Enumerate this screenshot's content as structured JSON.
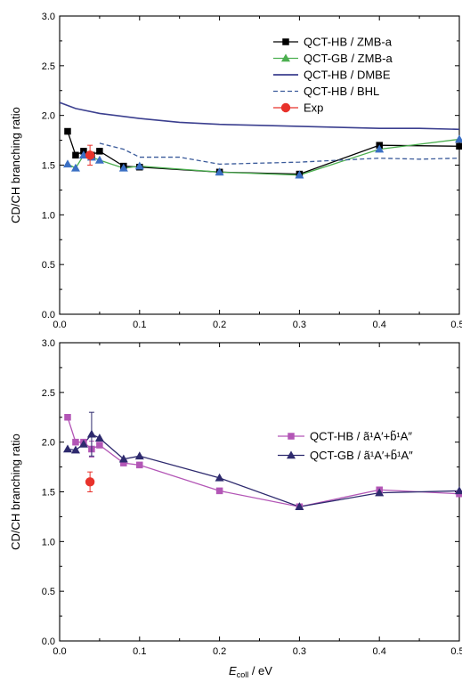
{
  "colors": {
    "hb_zmb": "#000000",
    "gb_zmb": "#4caf50",
    "hb_zmb_marker": "#3a6fc4",
    "dmbe": "#3b3f8f",
    "bhl": "#3a5a9a",
    "exp": "#e8322b",
    "hb_states": "#b356b6",
    "gb_states": "#2e2a6e"
  },
  "chart_data": [
    {
      "type": "line",
      "xlabel": "",
      "ylabel": "CD/CH branching ratio",
      "xlim": [
        0,
        0.5
      ],
      "ylim": [
        0,
        3.0
      ],
      "xticks": [
        "0.0",
        "0.1",
        "0.2",
        "0.3",
        "0.4",
        "0.5"
      ],
      "yticks": [
        "0.0",
        "0.5",
        "1.0",
        "1.5",
        "2.0",
        "2.5",
        "3.0"
      ],
      "legend_position": "top-right",
      "series": [
        {
          "name": "QCT-HB / ZMB-a",
          "style": "line-square",
          "color_key": "hb_zmb",
          "x": [
            0.01,
            0.02,
            0.03,
            0.04,
            0.05,
            0.08,
            0.1,
            0.2,
            0.3,
            0.4,
            0.5
          ],
          "y": [
            1.84,
            1.6,
            1.64,
            1.6,
            1.64,
            1.49,
            1.48,
            1.43,
            1.41,
            1.7,
            1.69
          ]
        },
        {
          "name": "QCT-GB / ZMB-a",
          "style": "line-triangle",
          "color_key": "gb_zmb",
          "x": [
            0.01,
            0.02,
            0.03,
            0.04,
            0.05,
            0.08,
            0.1,
            0.2,
            0.3,
            0.4,
            0.5
          ],
          "y": [
            1.51,
            1.47,
            1.6,
            1.58,
            1.55,
            1.47,
            1.49,
            1.43,
            1.4,
            1.66,
            1.76
          ]
        },
        {
          "name": "QCT-HB / DMBE",
          "style": "line",
          "color_key": "dmbe",
          "x": [
            0.0,
            0.02,
            0.05,
            0.1,
            0.15,
            0.2,
            0.25,
            0.3,
            0.35,
            0.4,
            0.45,
            0.5
          ],
          "y": [
            2.13,
            2.07,
            2.02,
            1.97,
            1.93,
            1.91,
            1.9,
            1.89,
            1.88,
            1.87,
            1.87,
            1.86
          ]
        },
        {
          "name": "QCT-HB / BHL",
          "style": "dashed",
          "color_key": "bhl",
          "x": [
            0.05,
            0.08,
            0.1,
            0.15,
            0.2,
            0.3,
            0.4,
            0.45,
            0.5
          ],
          "y": [
            1.72,
            1.66,
            1.58,
            1.58,
            1.51,
            1.53,
            1.57,
            1.56,
            1.57
          ]
        },
        {
          "name": "Exp",
          "style": "point-circle",
          "color_key": "exp",
          "x": [
            0.038
          ],
          "y": [
            1.6
          ],
          "yerr": [
            0.1
          ]
        }
      ]
    },
    {
      "type": "line",
      "xlabel": "E_coll / eV",
      "xlabel_main": "E",
      "xlabel_sub": "coll",
      "xlabel_unit": " / eV",
      "ylabel": "CD/CH branching ratio",
      "xlim": [
        0,
        0.5
      ],
      "ylim": [
        0,
        3.0
      ],
      "xticks": [
        "0.0",
        "0.1",
        "0.2",
        "0.3",
        "0.4",
        "0.5"
      ],
      "yticks": [
        "0.0",
        "0.5",
        "1.0",
        "1.5",
        "2.0",
        "2.5",
        "3.0"
      ],
      "legend_position": "top-right",
      "series": [
        {
          "name": "QCT-HB / ã¹A′+b̃¹A″",
          "style": "line-square",
          "color_key": "hb_states",
          "x": [
            0.01,
            0.02,
            0.03,
            0.04,
            0.05,
            0.08,
            0.1,
            0.2,
            0.3,
            0.4,
            0.5
          ],
          "y": [
            2.25,
            2.0,
            2.0,
            1.93,
            1.97,
            1.79,
            1.77,
            1.51,
            1.35,
            1.52,
            1.48
          ],
          "yerr_index": 3,
          "yerr_value": 0.08
        },
        {
          "name": "QCT-GB / ã¹A′+b̃¹A″",
          "style": "line-triangle",
          "color_key": "gb_states",
          "x": [
            0.01,
            0.02,
            0.03,
            0.04,
            0.05,
            0.08,
            0.1,
            0.2,
            0.3,
            0.4,
            0.5
          ],
          "y": [
            1.93,
            1.92,
            1.98,
            2.08,
            2.04,
            1.83,
            1.86,
            1.64,
            1.35,
            1.49,
            1.51
          ],
          "yerr_index": 3,
          "yerr_value": 0.22
        },
        {
          "name": "Exp",
          "style": "point-circle",
          "color_key": "exp",
          "x": [
            0.038
          ],
          "y": [
            1.6
          ],
          "yerr": [
            0.1
          ]
        }
      ]
    }
  ]
}
